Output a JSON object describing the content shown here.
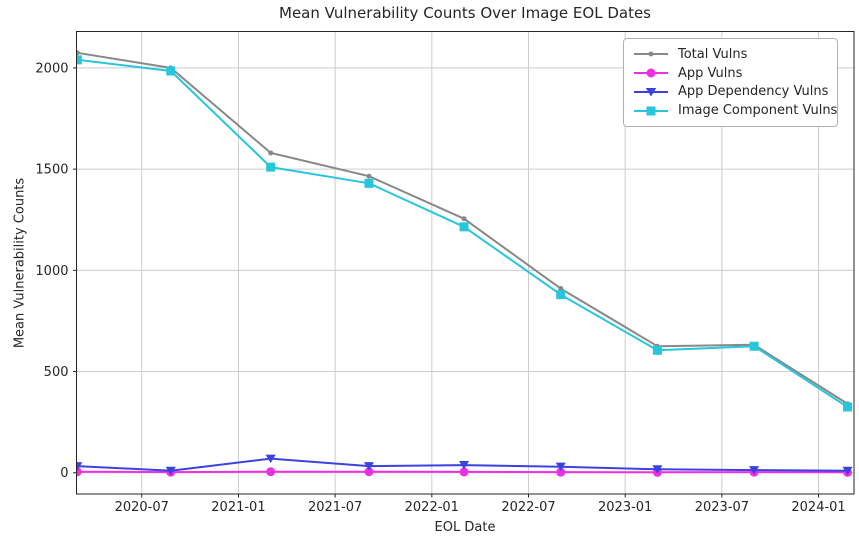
{
  "title": "Mean Vulnerability Counts Over Image EOL Dates",
  "chart_data": {
    "type": "line",
    "title": "Mean Vulnerability Counts Over Image EOL Dates",
    "xlabel": "EOL Date",
    "ylabel": "Mean Vulnerability Counts",
    "grid": true,
    "legend_position": "upper-right",
    "point_dates": [
      "2020-03",
      "2020-09",
      "2021-03",
      "2021-09",
      "2022-03",
      "2022-09",
      "2023-03",
      "2023-09",
      "2024-02"
    ],
    "x_months_since_2020_01": [
      2.0,
      7.8,
      14.0,
      20.1,
      26.0,
      32.0,
      38.0,
      44.0,
      49.8
    ],
    "series": [
      {
        "name": "Total Vulns",
        "color": "#888888",
        "marker": "circle-small",
        "values": [
          2075,
          2000,
          1580,
          1465,
          1255,
          910,
          625,
          632,
          340
        ]
      },
      {
        "name": "App Vulns",
        "color": "#ee2fe4",
        "marker": "circle",
        "values": [
          5,
          3,
          5,
          5,
          4,
          3,
          2,
          3,
          2
        ]
      },
      {
        "name": "App Dependency Vulns",
        "color": "#3c42df",
        "marker": "triangle-down",
        "values": [
          33,
          10,
          70,
          33,
          38,
          30,
          17,
          13,
          10
        ]
      },
      {
        "name": "Image Component Vulns",
        "color": "#26c6dc",
        "marker": "square",
        "values": [
          2040,
          1985,
          1510,
          1430,
          1215,
          880,
          605,
          625,
          325
        ]
      }
    ],
    "xticks": {
      "months": [
        6,
        12,
        18,
        24,
        30,
        36,
        42,
        48
      ],
      "labels": [
        "2020-07",
        "2021-01",
        "2021-07",
        "2022-01",
        "2022-07",
        "2023-01",
        "2023-07",
        "2024-01"
      ]
    },
    "yticks": [
      0,
      500,
      1000,
      1500,
      2000
    ],
    "xlim_months": [
      1.95,
      50.2
    ],
    "ylim": [
      -105,
      2180
    ]
  },
  "colors": {
    "grid": "#cccccc",
    "spine": "#262626",
    "tick_text": "#262626",
    "background": "#ffffff"
  }
}
